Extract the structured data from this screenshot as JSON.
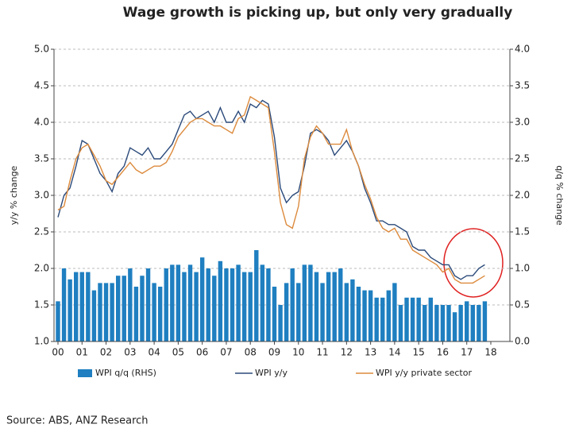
{
  "chart_data": {
    "type": "bar-line",
    "title": "Wage growth is picking up, but only very gradually",
    "y_label": "y/y % change",
    "y2_label": "q/q % change",
    "source": "Source: ABS, ANZ Research",
    "categories": [
      "00",
      null,
      null,
      null,
      "01",
      null,
      null,
      null,
      "02",
      null,
      null,
      null,
      "03",
      null,
      null,
      null,
      "04",
      null,
      null,
      null,
      "05",
      null,
      null,
      null,
      "06",
      null,
      null,
      null,
      "07",
      null,
      null,
      null,
      "08",
      null,
      null,
      null,
      "09",
      null,
      null,
      null,
      "10",
      null,
      null,
      null,
      "11",
      null,
      null,
      null,
      "12",
      null,
      null,
      null,
      "13",
      null,
      null,
      null,
      "14",
      null,
      null,
      null,
      "15",
      null,
      null,
      null,
      "16",
      null,
      null,
      null,
      "17",
      null,
      null,
      null,
      "18"
    ],
    "ylim": [
      1,
      5
    ],
    "yticks": [
      {
        "value": 1,
        "label": "1.0"
      },
      {
        "value": 1.5,
        "label": "1.5"
      },
      {
        "value": 2,
        "label": "2.0"
      },
      {
        "value": 2.5,
        "label": "2.5"
      },
      {
        "value": 3,
        "label": "3.0"
      },
      {
        "value": 3.5,
        "label": "3.5"
      },
      {
        "value": 4,
        "label": "4.0"
      },
      {
        "value": 4.5,
        "label": "4.5"
      },
      {
        "value": 5,
        "label": "5.0"
      }
    ],
    "y2lim": [
      0,
      4
    ],
    "y2ticks": [
      {
        "value": 0,
        "label": "0.0"
      },
      {
        "value": 0.5,
        "label": "0.5"
      },
      {
        "value": 1,
        "label": "1.0"
      },
      {
        "value": 1.5,
        "label": "1.5"
      },
      {
        "value": 2,
        "label": "2.0"
      },
      {
        "value": 2.5,
        "label": "2.5"
      },
      {
        "value": 3,
        "label": "3.0"
      },
      {
        "value": 3.5,
        "label": "3.5"
      },
      {
        "value": 4,
        "label": "4.0"
      }
    ],
    "grid": true,
    "series": [
      {
        "name": "WPI q/q (RHS)",
        "type": "bar",
        "axis": "y2",
        "color": "#1f7fc0",
        "values": [
          0.55,
          1.0,
          0.85,
          0.95,
          0.95,
          0.95,
          0.7,
          0.8,
          0.8,
          0.8,
          0.9,
          0.9,
          1.0,
          0.75,
          0.9,
          1.0,
          0.8,
          0.75,
          1.0,
          1.05,
          1.05,
          0.95,
          1.05,
          0.95,
          1.15,
          1.0,
          0.9,
          1.1,
          1.0,
          1.0,
          1.05,
          0.95,
          0.95,
          1.25,
          1.05,
          1.0,
          0.75,
          0.5,
          0.8,
          1.0,
          0.8,
          1.05,
          1.05,
          0.95,
          0.8,
          0.95,
          0.95,
          1.0,
          0.8,
          0.85,
          0.75,
          0.7,
          0.7,
          0.6,
          0.6,
          0.7,
          0.8,
          0.5,
          0.6,
          0.6,
          0.6,
          0.5,
          0.6,
          0.5,
          0.5,
          0.5,
          0.4,
          0.5,
          0.55,
          0.5,
          0.5,
          0.55,
          null
        ]
      },
      {
        "name": "WPI y/y",
        "type": "line",
        "color": "#2b4a7a",
        "values": [
          2.7,
          3.0,
          3.1,
          3.4,
          3.75,
          3.7,
          3.5,
          3.3,
          3.2,
          3.05,
          3.3,
          3.4,
          3.65,
          3.6,
          3.55,
          3.65,
          3.5,
          3.5,
          3.6,
          3.7,
          3.9,
          4.1,
          4.15,
          4.05,
          4.1,
          4.15,
          4.0,
          4.2,
          4.0,
          4.0,
          4.15,
          4.0,
          4.25,
          4.2,
          4.3,
          4.25,
          3.8,
          3.1,
          2.9,
          3.0,
          3.05,
          3.4,
          3.85,
          3.9,
          3.85,
          3.75,
          3.55,
          3.65,
          3.75,
          3.6,
          3.4,
          3.1,
          2.9,
          2.65,
          2.65,
          2.6,
          2.6,
          2.55,
          2.5,
          2.3,
          2.25,
          2.25,
          2.15,
          2.1,
          2.05,
          2.05,
          1.9,
          1.85,
          1.9,
          1.9,
          2.0,
          2.05,
          null
        ]
      },
      {
        "name": "WPI y/y private sector",
        "type": "line",
        "color": "#dc8a3c",
        "values": [
          2.8,
          2.85,
          3.2,
          3.5,
          3.65,
          3.7,
          3.55,
          3.4,
          3.2,
          3.15,
          3.25,
          3.35,
          3.45,
          3.35,
          3.3,
          3.35,
          3.4,
          3.4,
          3.45,
          3.6,
          3.8,
          3.9,
          4.0,
          4.05,
          4.05,
          4.0,
          3.95,
          3.95,
          3.9,
          3.85,
          4.05,
          4.1,
          4.35,
          4.3,
          4.25,
          4.2,
          3.6,
          2.9,
          2.6,
          2.55,
          2.85,
          3.5,
          3.8,
          3.95,
          3.85,
          3.7,
          3.7,
          3.7,
          3.9,
          3.6,
          3.4,
          3.15,
          2.95,
          2.7,
          2.55,
          2.5,
          2.55,
          2.4,
          2.4,
          2.25,
          2.2,
          2.15,
          2.1,
          2.05,
          1.95,
          2.0,
          1.85,
          1.8,
          1.8,
          1.8,
          1.85,
          1.9,
          null
        ]
      }
    ]
  }
}
